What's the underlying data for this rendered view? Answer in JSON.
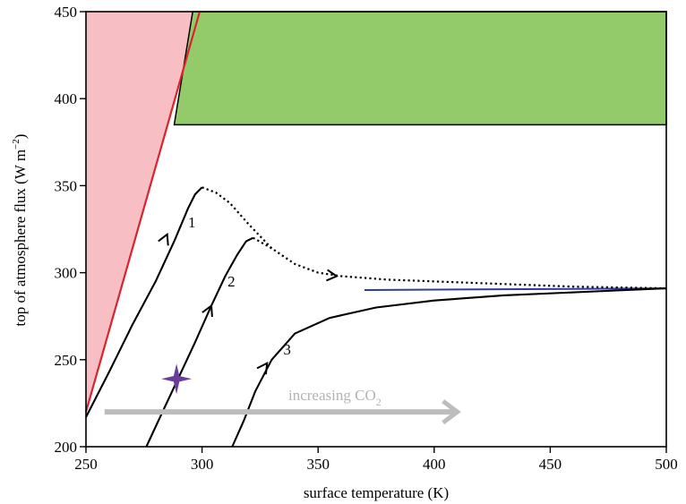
{
  "chart_data": {
    "type": "line",
    "xlabel": "surface temperature (K)",
    "ylabel_main": "top of atmosphere flux (W m",
    "ylabel_sup": "−2",
    "ylabel_close": ")",
    "xlim": [
      250,
      500
    ],
    "ylim": [
      200,
      450
    ],
    "xticks": [
      "250",
      "300",
      "350",
      "400",
      "450",
      "500"
    ],
    "yticks": [
      "200",
      "250",
      "300",
      "350",
      "400",
      "450"
    ],
    "grid": false,
    "colors": {
      "red_region": "#f7bfc4",
      "red_edge": "#d9232e",
      "green_region": "#94cb6a",
      "blue_line": "#2e3a9c",
      "star": "#6a3d9a",
      "co2_arrow": "#bdbdbd"
    },
    "regions": [
      {
        "name": "red",
        "polygon": [
          [
            250,
            220
          ],
          [
            250,
            450
          ],
          [
            299,
            450
          ]
        ]
      },
      {
        "name": "green",
        "polygon": [
          [
            296,
            450
          ],
          [
            500,
            450
          ],
          [
            500,
            385
          ],
          [
            288,
            385
          ]
        ]
      }
    ],
    "red_boundary": [
      [
        250,
        220
      ],
      [
        299,
        450
      ]
    ],
    "curves": [
      {
        "label": "1",
        "solid": [
          [
            250,
            217
          ],
          [
            260,
            243
          ],
          [
            270,
            270
          ],
          [
            280,
            295
          ],
          [
            288,
            318
          ],
          [
            294,
            337
          ],
          [
            297,
            345
          ],
          [
            300,
            349
          ]
        ],
        "dotted": [
          [
            300,
            349
          ],
          [
            306,
            346
          ],
          [
            312,
            340
          ],
          [
            320,
            328
          ],
          [
            330,
            314
          ],
          [
            340,
            305
          ],
          [
            350,
            300
          ],
          [
            360,
            298
          ],
          [
            380,
            296
          ],
          [
            420,
            294
          ],
          [
            460,
            292
          ],
          [
            500,
            291
          ]
        ],
        "arrows": [
          [
            285,
            322
          ],
          [
            358,
            298
          ]
        ],
        "label_pos": [
          294,
          326
        ]
      },
      {
        "label": "2",
        "solid": [
          [
            276,
            200
          ],
          [
            283,
            220
          ],
          [
            290,
            240
          ],
          [
            297,
            260
          ],
          [
            304,
            281
          ],
          [
            310,
            298
          ],
          [
            315,
            310
          ],
          [
            319,
            318
          ],
          [
            322,
            320
          ]
        ],
        "dotted": [
          [
            322,
            320
          ],
          [
            330,
            314
          ]
        ],
        "arrows": [
          [
            304,
            281
          ]
        ],
        "label_pos": [
          311,
          292
        ]
      },
      {
        "label": "3",
        "solid": [
          [
            313,
            200
          ],
          [
            318,
            215
          ],
          [
            323,
            232
          ],
          [
            330,
            250
          ],
          [
            340,
            265
          ],
          [
            355,
            274
          ],
          [
            375,
            280
          ],
          [
            400,
            284
          ],
          [
            430,
            287
          ],
          [
            465,
            289
          ],
          [
            500,
            291
          ]
        ],
        "dotted": [],
        "arrows": [
          [
            328,
            248
          ]
        ],
        "label_pos": [
          335,
          253
        ]
      }
    ],
    "blue_line": [
      [
        370,
        290
      ],
      [
        500,
        291
      ]
    ],
    "star": [
      289,
      239
    ],
    "co2_annotation": {
      "text": "increasing CO",
      "sub": "2",
      "arrow_from": [
        258,
        220
      ],
      "arrow_to": [
        410,
        220
      ]
    }
  }
}
